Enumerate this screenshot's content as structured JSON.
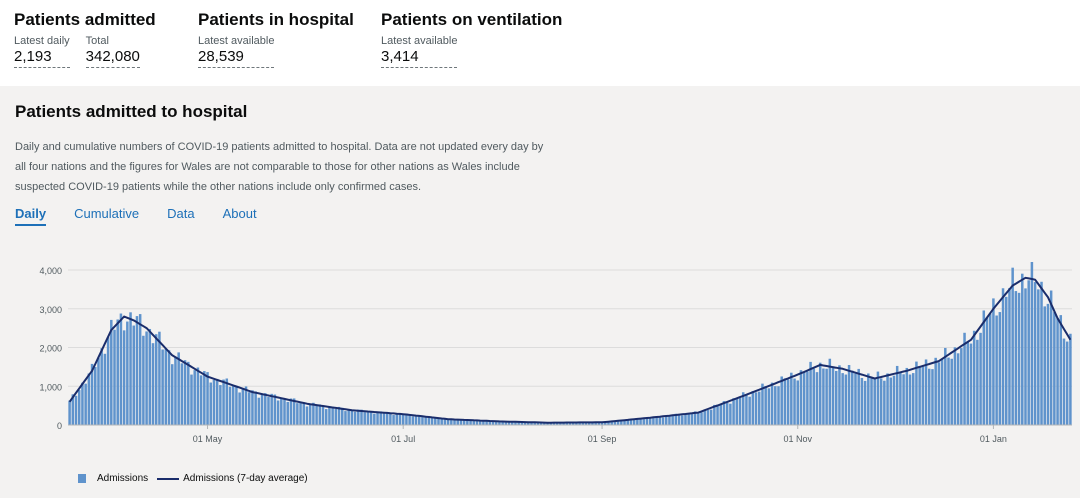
{
  "headline": {
    "admitted": {
      "title": "Patients admitted",
      "latest_label": "Latest daily",
      "latest_value": "2,193",
      "total_label": "Total",
      "total_value": "342,080"
    },
    "in_hospital": {
      "title": "Patients in hospital",
      "label": "Latest available",
      "value": "28,539"
    },
    "ventilation": {
      "title": "Patients on ventilation",
      "label": "Latest available",
      "value": "3,414"
    }
  },
  "card": {
    "title": "Patients admitted to hospital",
    "description": "Daily and cumulative numbers of COVID-19 patients admitted to hospital. Data are not updated every day by all four nations and the figures for Wales are not comparable to those for other nations as Wales include suspected COVID-19 patients while the other nations include only confirmed cases.",
    "tabs": [
      "Daily",
      "Cumulative",
      "Data",
      "About"
    ]
  },
  "colors": {
    "bars": "#5f93cc",
    "line": "#1a2d6b",
    "accent": "#1d70b8",
    "background": "#f3f2f1"
  },
  "chart_data": {
    "type": "bar",
    "x_start": "2020-03-19",
    "x_end": "2021-01-25",
    "ylim": [
      0,
      4000
    ],
    "yticks": [
      0,
      1000,
      2000,
      3000,
      4000
    ],
    "ytick_labels": [
      "0",
      "1,000",
      "2,000",
      "3,000",
      "4,000"
    ],
    "xticks": [
      "2020-05-01",
      "2020-07-01",
      "2020-09-01",
      "2020-11-01",
      "2021-01-01"
    ],
    "xtick_labels": [
      "01 May",
      "01 Jul",
      "01 Sep",
      "01 Nov",
      "01 Jan"
    ],
    "grid": true,
    "legend_position": "bottom-left",
    "series_keypoints": [
      [
        "2020-03-19",
        600
      ],
      [
        "2020-03-26",
        1400
      ],
      [
        "2020-04-01",
        2450
      ],
      [
        "2020-04-05",
        2800
      ],
      [
        "2020-04-08",
        2700
      ],
      [
        "2020-04-12",
        2500
      ],
      [
        "2020-04-20",
        1800
      ],
      [
        "2020-05-01",
        1250
      ],
      [
        "2020-05-15",
        850
      ],
      [
        "2020-06-01",
        550
      ],
      [
        "2020-06-15",
        380
      ],
      [
        "2020-07-01",
        280
      ],
      [
        "2020-07-15",
        150
      ],
      [
        "2020-08-01",
        90
      ],
      [
        "2020-08-15",
        60
      ],
      [
        "2020-09-01",
        70
      ],
      [
        "2020-09-15",
        180
      ],
      [
        "2020-10-01",
        320
      ],
      [
        "2020-10-15",
        750
      ],
      [
        "2020-11-01",
        1300
      ],
      [
        "2020-11-08",
        1550
      ],
      [
        "2020-11-15",
        1450
      ],
      [
        "2020-11-25",
        1200
      ],
      [
        "2020-12-05",
        1400
      ],
      [
        "2020-12-15",
        1650
      ],
      [
        "2020-12-25",
        2200
      ],
      [
        "2021-01-01",
        3000
      ],
      [
        "2021-01-07",
        3600
      ],
      [
        "2021-01-11",
        3800
      ],
      [
        "2021-01-14",
        3750
      ],
      [
        "2021-01-18",
        3300
      ],
      [
        "2021-01-21",
        2750
      ],
      [
        "2021-01-25",
        2200
      ]
    ],
    "series": [
      {
        "name": "Admissions",
        "type": "bar"
      },
      {
        "name": "Admissions (7-day average)",
        "type": "line"
      }
    ]
  }
}
